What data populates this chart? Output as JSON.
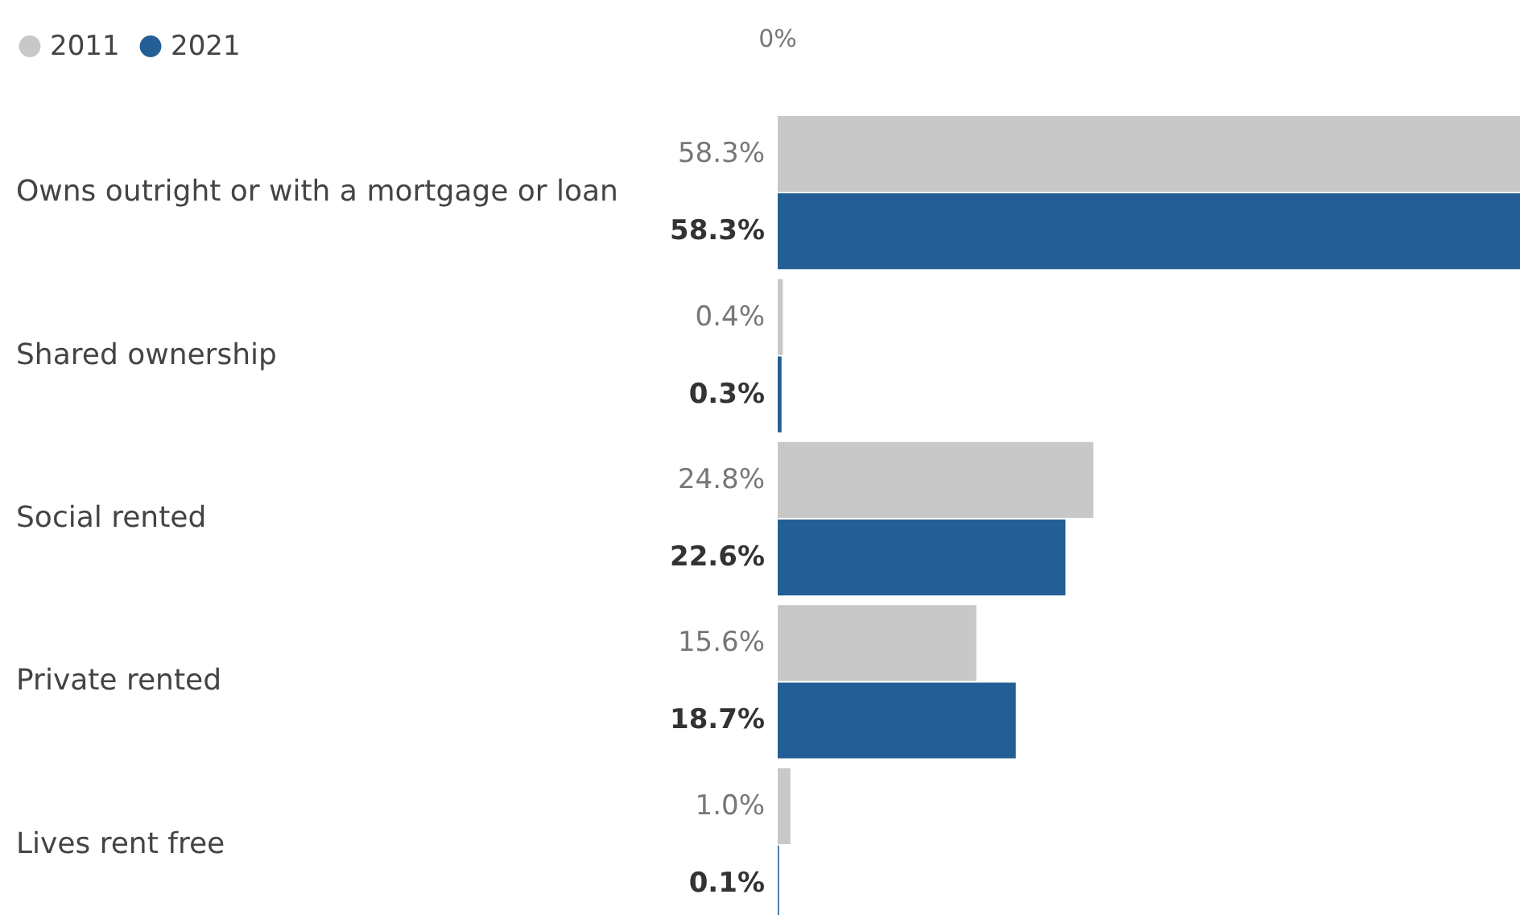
{
  "chart_data": {
    "type": "bar",
    "orientation": "horizontal",
    "categories": [
      "Owns outright or with a mortgage or loan",
      "Shared ownership",
      "Social rented",
      "Private rented",
      "Lives rent free"
    ],
    "series": [
      {
        "name": "2011",
        "color": "#c8c8c8",
        "values": [
          58.3,
          0.4,
          24.8,
          15.6,
          1.0
        ],
        "value_labels": [
          "58.3%",
          "0.4%",
          "24.8%",
          "15.6%",
          "1.0%"
        ]
      },
      {
        "name": "2021",
        "color": "#235f95",
        "values": [
          58.3,
          0.3,
          22.6,
          18.7,
          0.1
        ],
        "value_labels": [
          "58.3%",
          "0.3%",
          "22.6%",
          "18.7%",
          "0.1%"
        ]
      }
    ],
    "xlim": [
      0,
      58.3
    ],
    "annotations": [
      "0%"
    ],
    "legend": "top left"
  }
}
